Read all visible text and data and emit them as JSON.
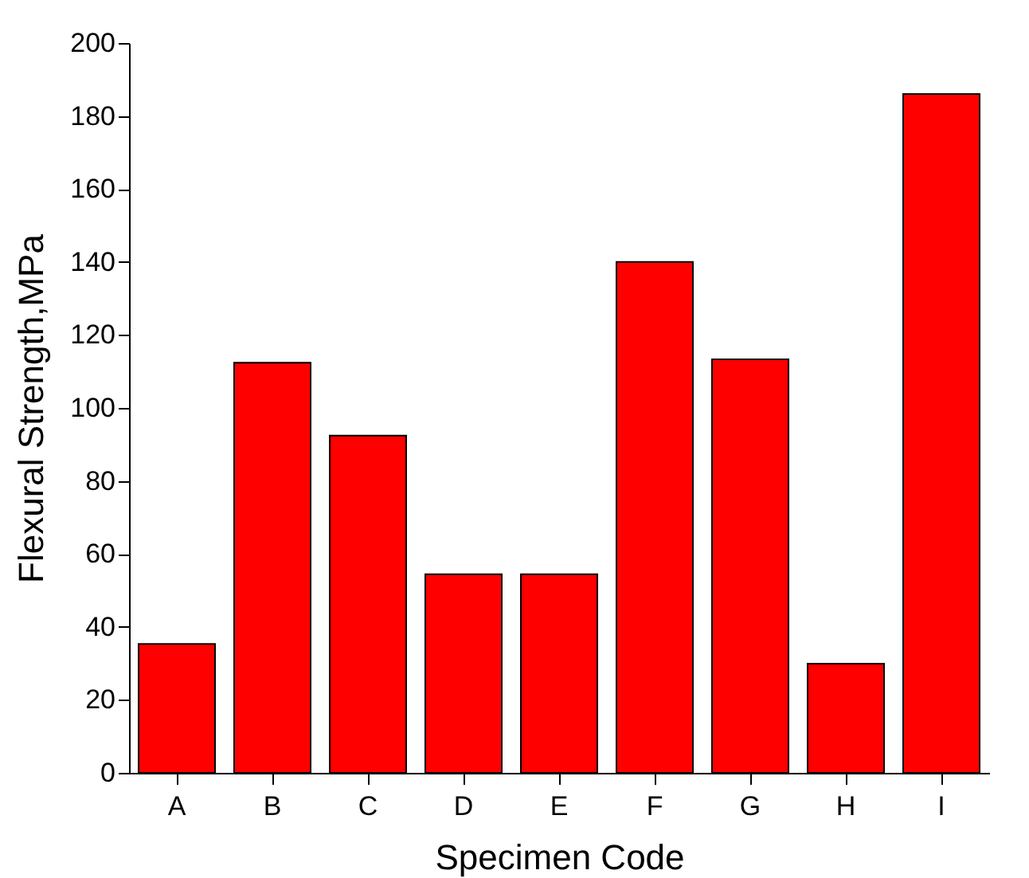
{
  "chart_data": {
    "type": "bar",
    "xlabel": "Specimen Code",
    "ylabel": "Flexural Strength,MPa",
    "categories": [
      "A",
      "B",
      "C",
      "D",
      "E",
      "F",
      "G",
      "H",
      "I"
    ],
    "values": [
      35.3,
      112.4,
      92.4,
      54.4,
      54.4,
      140,
      113.3,
      29.9,
      186
    ],
    "color": "#ff0000",
    "ylim": [
      0,
      200
    ],
    "yticks": [
      0,
      20,
      40,
      60,
      80,
      100,
      120,
      140,
      160,
      180,
      200
    ],
    "grid": false
  }
}
